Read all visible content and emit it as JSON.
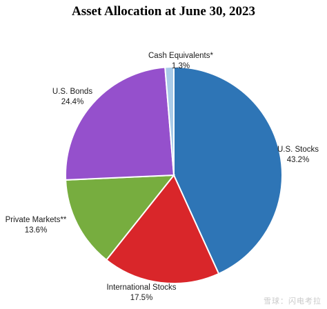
{
  "chart_data": {
    "type": "pie",
    "title": "Asset Allocation at June 30, 2023",
    "slices": [
      {
        "label": "U.S. Stocks",
        "value": 43.2,
        "value_label": "43.2%",
        "color": "#2e75b6"
      },
      {
        "label": "International Stocks",
        "value": 17.5,
        "value_label": "17.5%",
        "color": "#d9262a"
      },
      {
        "label": "Private Markets**",
        "value": 13.6,
        "value_label": "13.6%",
        "color": "#77ad3f"
      },
      {
        "label": "U.S. Bonds",
        "value": 24.4,
        "value_label": "24.4%",
        "color": "#9550cc"
      },
      {
        "label": "Cash Equivalents*",
        "value": 1.3,
        "value_label": "1.3%",
        "color": "#a9cbe9"
      }
    ],
    "legend": "none"
  },
  "watermark": "雪球：闪电考拉"
}
